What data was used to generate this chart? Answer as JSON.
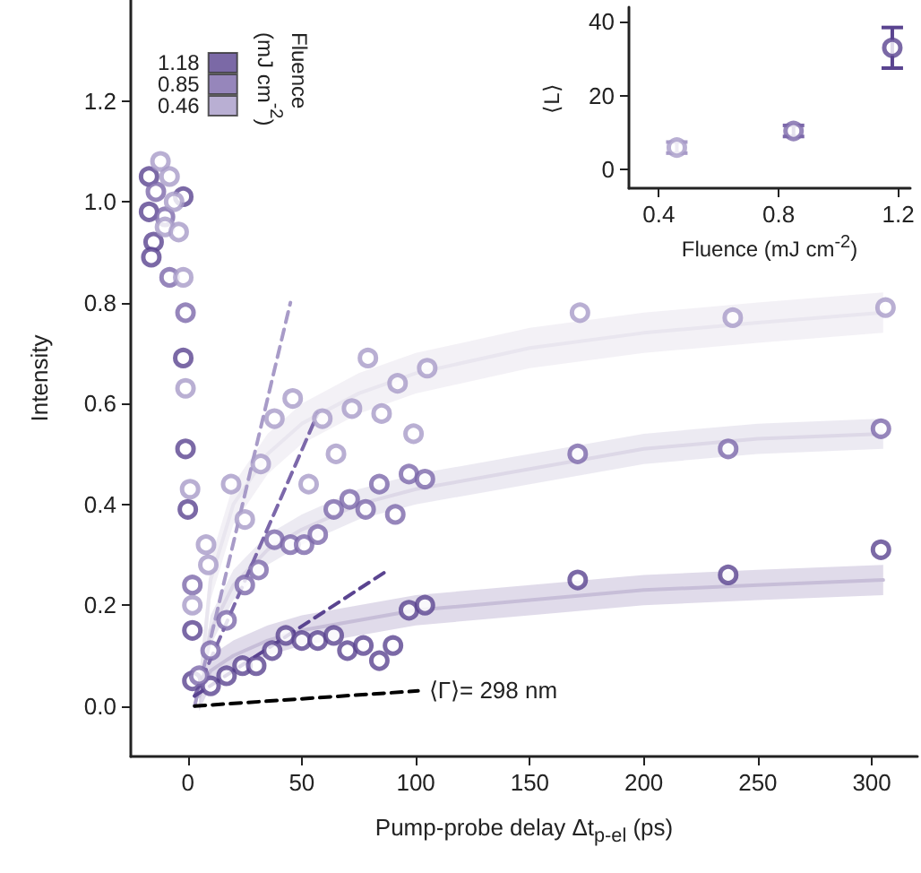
{
  "chart_data": [
    {
      "type": "scatter",
      "xlabel": "Pump-probe delay Δt$_{p-el}$ (ps)",
      "ylabel": "Intensity",
      "legend_title": "Fluence (mJ cm$^{-2}$)",
      "legend": "top left",
      "marker": "circle",
      "grid": false,
      "xlim": [
        -25,
        320
      ],
      "xticks": [
        0,
        50,
        100,
        150,
        200,
        250,
        300
      ],
      "ylim": [
        -0.1,
        1.4
      ],
      "yticks": [
        {
          "value": 0,
          "label": "0.0"
        },
        0.2,
        0.4,
        0.6,
        0.8,
        {
          "value": 1,
          "label": "1.0"
        },
        1.2
      ],
      "annotations": [
        {
          "text": "⟨Γ⟩= 298 nm",
          "x": 101,
          "y": 0.03
        }
      ],
      "series": [
        {
          "type": "line",
          "color": "#e9e6ef",
          "marker": "none",
          "line_style": "solid",
          "x": [
            5,
            10,
            20,
            35,
            50,
            75,
            100,
            150,
            200,
            250,
            305
          ],
          "values": [
            0.02,
            0.25,
            0.4,
            0.5,
            0.56,
            0.62,
            0.66,
            0.71,
            0.74,
            0.76,
            0.78
          ],
          "lower": [
            0,
            0.21,
            0.36,
            0.46,
            0.52,
            0.58,
            0.62,
            0.67,
            0.7,
            0.72,
            0.74
          ],
          "upper": [
            0.06,
            0.29,
            0.44,
            0.54,
            0.6,
            0.66,
            0.7,
            0.75,
            0.78,
            0.8,
            0.82
          ]
        },
        {
          "type": "line",
          "color": "#ddd8e7",
          "marker": "none",
          "line_style": "solid",
          "x": [
            5,
            10,
            20,
            35,
            50,
            75,
            100,
            150,
            200,
            250,
            305
          ],
          "values": [
            0.02,
            0.15,
            0.24,
            0.31,
            0.35,
            0.4,
            0.43,
            0.47,
            0.51,
            0.53,
            0.54
          ],
          "lower": [
            -0.01,
            0.12,
            0.21,
            0.28,
            0.32,
            0.37,
            0.4,
            0.44,
            0.48,
            0.5,
            0.51
          ],
          "upper": [
            0.05,
            0.18,
            0.27,
            0.34,
            0.38,
            0.43,
            0.46,
            0.5,
            0.54,
            0.56,
            0.57
          ]
        },
        {
          "type": "line",
          "color": "#c7bed8",
          "marker": "none",
          "line_style": "solid",
          "x": [
            5,
            10,
            20,
            35,
            50,
            75,
            100,
            150,
            200,
            250,
            305
          ],
          "values": [
            0.02,
            0.07,
            0.1,
            0.13,
            0.15,
            0.17,
            0.19,
            0.21,
            0.23,
            0.24,
            0.25
          ],
          "lower": [
            -0.01,
            0.04,
            0.07,
            0.1,
            0.12,
            0.14,
            0.16,
            0.18,
            0.2,
            0.21,
            0.22
          ],
          "upper": [
            0.05,
            0.1,
            0.13,
            0.16,
            0.18,
            0.2,
            0.22,
            0.24,
            0.26,
            0.27,
            0.28
          ]
        },
        {
          "type": "line",
          "color": "#a89bc8",
          "marker": "none",
          "line_style": "dashed",
          "x": [
            3,
            45
          ],
          "values": [
            0,
            0.8
          ]
        },
        {
          "type": "line",
          "color": "#7c68aa",
          "marker": "none",
          "line_style": "dashed",
          "x": [
            3,
            57
          ],
          "values": [
            0.02,
            0.58
          ]
        },
        {
          "type": "line",
          "color": "#5a4490",
          "marker": "none",
          "line_style": "dashed",
          "x": [
            3,
            88
          ],
          "values": [
            0.02,
            0.27
          ]
        },
        {
          "type": "line",
          "color": "#000000",
          "marker": "none",
          "line_style": "dashed",
          "x": [
            3,
            101
          ],
          "values": [
            0,
            0.03
          ]
        },
        {
          "name": "1.18",
          "color": "#5a4490",
          "x": [
            -17,
            -17,
            -15,
            -16,
            -2,
            -2,
            -1,
            0,
            2,
            2,
            10,
            17,
            24,
            30,
            37,
            43,
            50,
            57,
            64,
            70,
            77,
            84,
            90,
            97,
            104,
            171,
            237,
            304
          ],
          "values": [
            1.05,
            0.98,
            0.92,
            0.89,
            1.01,
            0.69,
            0.51,
            0.39,
            0.15,
            0.05,
            0.04,
            0.06,
            0.08,
            0.08,
            0.11,
            0.14,
            0.13,
            0.13,
            0.14,
            0.11,
            0.12,
            0.09,
            0.12,
            0.19,
            0.2,
            0.25,
            0.26,
            0.31
          ]
        },
        {
          "name": "0.85",
          "color": "#7c68aa",
          "x": [
            -14,
            -10,
            -8,
            -1,
            2,
            5,
            10,
            17,
            25,
            31,
            38,
            45,
            51,
            57,
            64,
            71,
            78,
            84,
            91,
            97,
            104,
            171,
            237,
            304
          ],
          "values": [
            1.02,
            0.97,
            0.85,
            0.78,
            0.24,
            0.06,
            0.11,
            0.17,
            0.24,
            0.27,
            0.33,
            0.32,
            0.32,
            0.34,
            0.39,
            0.41,
            0.39,
            0.44,
            0.38,
            0.46,
            0.45,
            0.5,
            0.51,
            0.55
          ]
        },
        {
          "name": "0.46",
          "color": "#a89bc8",
          "x": [
            -12,
            -8,
            -6,
            -10,
            -4,
            -2,
            -1,
            1,
            2,
            8,
            9,
            19,
            25,
            32,
            38,
            46,
            53,
            59,
            65,
            72,
            79,
            85,
            92,
            99,
            105,
            172,
            239,
            306
          ],
          "values": [
            1.08,
            1.05,
            1.0,
            0.95,
            0.94,
            0.85,
            0.63,
            0.43,
            0.2,
            0.32,
            0.28,
            0.44,
            0.37,
            0.48,
            0.57,
            0.61,
            0.44,
            0.57,
            0.5,
            0.59,
            0.69,
            0.58,
            0.64,
            0.54,
            0.67,
            0.78,
            0.77,
            0.79
          ]
        }
      ]
    },
    {
      "type": "scatter",
      "xlabel": "Fluence (mJ cm$^{-2}$)",
      "ylabel": "⟨L⟩",
      "marker": "circle",
      "grid": false,
      "xlim": [
        0.3,
        1.24
      ],
      "xticks": [
        0.4,
        0.8,
        1.2
      ],
      "ylim": [
        -5,
        44
      ],
      "yticks": [
        0,
        20,
        40
      ],
      "x": [
        0.46,
        0.85,
        1.18
      ],
      "values": [
        6,
        10.5,
        33
      ],
      "colors": [
        "#a89bc8",
        "#7c68aa",
        "#5a4490"
      ],
      "errors": [
        1.5,
        1.5,
        [
          27.5,
          38.5
        ]
      ]
    }
  ]
}
